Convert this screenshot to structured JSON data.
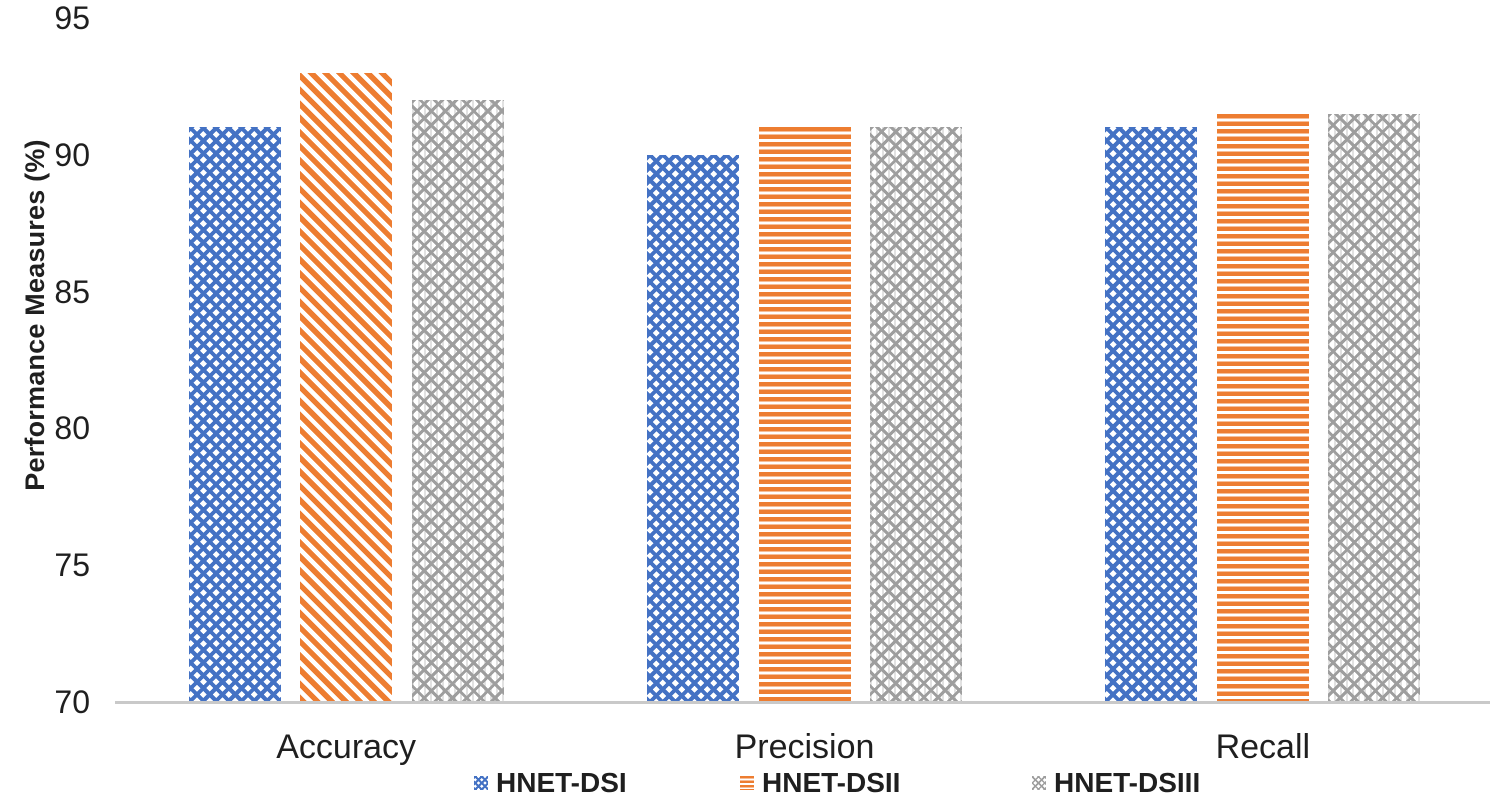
{
  "chart_data": {
    "type": "bar",
    "title": "",
    "categories": [
      "Accuracy",
      "Precision",
      "Recall"
    ],
    "series": [
      {
        "name": "HNET-DSI",
        "color": "#4472C4",
        "pattern": "dotted-diamond",
        "patterns_by_category": [
          "dotted-diamond",
          "dotted-diamond",
          "dotted-diamond"
        ],
        "values": [
          91,
          90,
          91
        ]
      },
      {
        "name": "HNET-DSII",
        "color": "#ED7D31",
        "pattern": "horizontal-stripes",
        "patterns_by_category": [
          "diagonal-stripes",
          "horizontal-stripes",
          "horizontal-stripes"
        ],
        "values": [
          93,
          91,
          91.5
        ]
      },
      {
        "name": "HNET-DSIII",
        "color": "#A6A6A6",
        "pattern": "basket-weave",
        "patterns_by_category": [
          "basket-weave",
          "basket-weave",
          "basket-weave"
        ],
        "values": [
          92,
          91,
          91.5
        ]
      }
    ],
    "xlabel": "",
    "ylabel": "Performance Measures (%)",
    "ylim": [
      70,
      95
    ],
    "yticks": [
      95,
      90,
      85,
      80,
      75,
      70
    ],
    "grid": false,
    "legend_position": "bottom",
    "background_color": "#FFFFFF",
    "axis_line_color": "#C9C9C9",
    "text_color": "#1F1F1F"
  }
}
